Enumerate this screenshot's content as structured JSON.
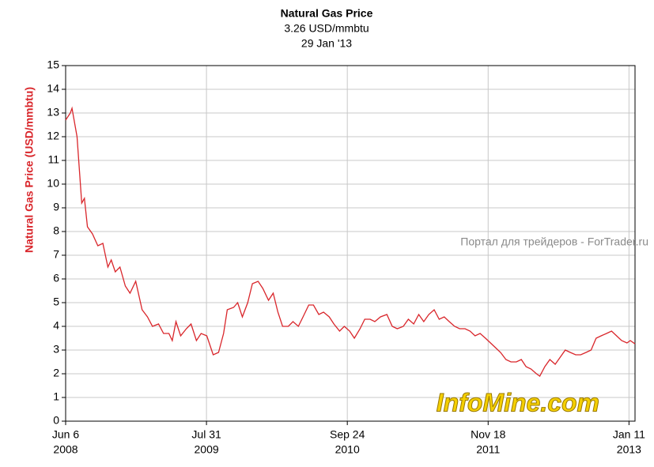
{
  "chart_data": {
    "type": "line",
    "title": "Natural Gas Price",
    "subtitle": "3.26 USD/mmbtu",
    "date_label": "29 Jan '13",
    "y_label": "Natural Gas Price (USD/mmbtu)",
    "watermarks": [
      "Портал для трейдеров - ForTrader.ru",
      "InfoMine.com"
    ],
    "grid": true,
    "xlim": [
      "2008-06-06",
      "2013-01-29"
    ],
    "xticks": [
      {
        "value": "2008-06-06",
        "label": [
          "Jun 6",
          "2008"
        ]
      },
      {
        "value": "2009-07-31",
        "label": [
          "Jul 31",
          "2009"
        ]
      },
      {
        "value": "2010-09-24",
        "label": [
          "Sep 24",
          "2010"
        ]
      },
      {
        "value": "2011-11-18",
        "label": [
          "Nov 18",
          "2011"
        ]
      },
      {
        "value": "2013-01-11",
        "label": [
          "Jan 11",
          "2013"
        ]
      }
    ],
    "ylim": [
      0,
      15
    ],
    "yticks": [
      0,
      1,
      2,
      3,
      4,
      5,
      6,
      7,
      8,
      9,
      10,
      11,
      12,
      13,
      14,
      15
    ],
    "x": [
      "2008-06-06",
      "2008-06-20",
      "2008-06-25",
      "2008-07-10",
      "2008-07-24",
      "2008-08-01",
      "2008-08-10",
      "2008-08-25",
      "2008-09-10",
      "2008-09-25",
      "2008-10-10",
      "2008-10-20",
      "2008-11-01",
      "2008-11-15",
      "2008-12-01",
      "2008-12-15",
      "2009-01-01",
      "2009-01-20",
      "2009-02-05",
      "2009-02-20",
      "2009-03-10",
      "2009-03-25",
      "2009-04-10",
      "2009-04-20",
      "2009-05-01",
      "2009-05-15",
      "2009-06-01",
      "2009-06-15",
      "2009-07-01",
      "2009-07-15",
      "2009-08-01",
      "2009-08-20",
      "2009-09-05",
      "2009-09-20",
      "2009-10-01",
      "2009-10-20",
      "2009-11-01",
      "2009-11-15",
      "2009-12-01",
      "2009-12-15",
      "2010-01-01",
      "2010-01-15",
      "2010-02-01",
      "2010-02-15",
      "2010-03-01",
      "2010-03-15",
      "2010-04-01",
      "2010-04-15",
      "2010-05-01",
      "2010-05-15",
      "2010-06-01",
      "2010-06-15",
      "2010-07-01",
      "2010-07-15",
      "2010-08-01",
      "2010-08-15",
      "2010-09-01",
      "2010-09-15",
      "2010-10-01",
      "2010-10-15",
      "2010-11-01",
      "2010-11-15",
      "2010-12-01",
      "2010-12-15",
      "2011-01-01",
      "2011-01-20",
      "2011-02-05",
      "2011-02-20",
      "2011-03-10",
      "2011-03-25",
      "2011-04-10",
      "2011-04-25",
      "2011-05-10",
      "2011-05-25",
      "2011-06-10",
      "2011-06-25",
      "2011-07-10",
      "2011-07-25",
      "2011-08-10",
      "2011-08-25",
      "2011-09-10",
      "2011-09-25",
      "2011-10-10",
      "2011-10-25",
      "2011-11-10",
      "2011-11-25",
      "2011-12-10",
      "2011-12-25",
      "2012-01-10",
      "2012-01-25",
      "2012-02-10",
      "2012-02-25",
      "2012-03-10",
      "2012-03-25",
      "2012-04-10",
      "2012-04-20",
      "2012-05-05",
      "2012-05-20",
      "2012-06-05",
      "2012-06-20",
      "2012-07-05",
      "2012-07-20",
      "2012-08-05",
      "2012-08-20",
      "2012-09-05",
      "2012-09-20",
      "2012-10-05",
      "2012-10-20",
      "2012-11-05",
      "2012-11-20",
      "2012-12-05",
      "2012-12-20",
      "2013-01-05",
      "2013-01-15",
      "2013-01-29"
    ],
    "series": [
      {
        "name": "Natural Gas Price",
        "color": "#d9262b",
        "values": [
          12.7,
          13.0,
          13.2,
          12.0,
          9.2,
          9.4,
          8.2,
          7.9,
          7.4,
          7.5,
          6.5,
          6.8,
          6.3,
          6.5,
          5.7,
          5.4,
          5.9,
          4.7,
          4.4,
          4.0,
          4.1,
          3.7,
          3.7,
          3.4,
          4.2,
          3.6,
          3.9,
          4.1,
          3.4,
          3.7,
          3.6,
          2.8,
          2.9,
          3.7,
          4.7,
          4.8,
          5.0,
          4.4,
          5.0,
          5.8,
          5.9,
          5.6,
          5.1,
          5.4,
          4.6,
          4.0,
          4.0,
          4.2,
          4.0,
          4.4,
          4.9,
          4.9,
          4.5,
          4.6,
          4.4,
          4.1,
          3.8,
          4.0,
          3.8,
          3.5,
          3.9,
          4.3,
          4.3,
          4.2,
          4.4,
          4.5,
          4.0,
          3.9,
          4.0,
          4.3,
          4.1,
          4.5,
          4.2,
          4.5,
          4.7,
          4.3,
          4.4,
          4.2,
          4.0,
          3.9,
          3.9,
          3.8,
          3.6,
          3.7,
          3.5,
          3.3,
          3.1,
          2.9,
          2.6,
          2.5,
          2.5,
          2.6,
          2.3,
          2.2,
          2.0,
          1.9,
          2.3,
          2.6,
          2.4,
          2.7,
          3.0,
          2.9,
          2.8,
          2.8,
          2.9,
          3.0,
          3.5,
          3.6,
          3.7,
          3.8,
          3.6,
          3.4,
          3.3,
          3.4,
          3.26
        ]
      }
    ]
  }
}
